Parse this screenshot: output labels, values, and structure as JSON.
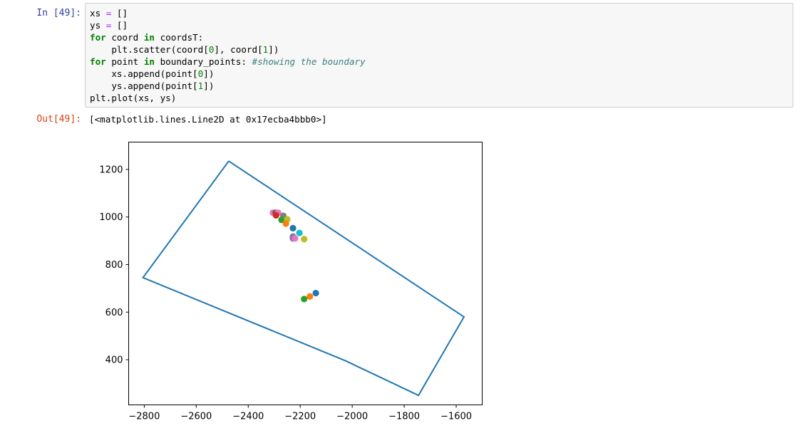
{
  "cell_in": {
    "prompt": "In [49]:",
    "code_lines": [
      [
        {
          "t": "xs ",
          "c": ""
        },
        {
          "t": "=",
          "c": "op"
        },
        {
          "t": " []",
          "c": ""
        }
      ],
      [
        {
          "t": "ys ",
          "c": ""
        },
        {
          "t": "=",
          "c": "op"
        },
        {
          "t": " []",
          "c": ""
        }
      ],
      [
        {
          "t": "for",
          "c": "kw"
        },
        {
          "t": " coord ",
          "c": ""
        },
        {
          "t": "in",
          "c": "kw"
        },
        {
          "t": " coordsT:",
          "c": ""
        }
      ],
      [
        {
          "t": "    plt.scatter(coord[",
          "c": ""
        },
        {
          "t": "0",
          "c": "num"
        },
        {
          "t": "], coord[",
          "c": ""
        },
        {
          "t": "1",
          "c": "num"
        },
        {
          "t": "])",
          "c": ""
        }
      ],
      [
        {
          "t": "for",
          "c": "kw"
        },
        {
          "t": " point ",
          "c": ""
        },
        {
          "t": "in",
          "c": "kw"
        },
        {
          "t": " boundary_points: ",
          "c": ""
        },
        {
          "t": "#showing the boundary",
          "c": "com"
        }
      ],
      [
        {
          "t": "    xs.append(point[",
          "c": ""
        },
        {
          "t": "0",
          "c": "num"
        },
        {
          "t": "])",
          "c": ""
        }
      ],
      [
        {
          "t": "    ys.append(point[",
          "c": ""
        },
        {
          "t": "1",
          "c": "num"
        },
        {
          "t": "])",
          "c": ""
        }
      ],
      [
        {
          "t": "plt.plot(xs, ys)",
          "c": ""
        }
      ]
    ]
  },
  "cell_out": {
    "prompt": "Out[49]:",
    "text": "[<matplotlib.lines.Line2D at 0x17ecba4bbb0>]"
  },
  "chart_data": {
    "type": "scatter",
    "title": "",
    "xlabel": "",
    "ylabel": "",
    "xlim": [
      -2860,
      -1500
    ],
    "ylim": [
      210,
      1315
    ],
    "xticks": [
      -2800,
      -2600,
      -2400,
      -2200,
      -2000,
      -1800,
      -1600
    ],
    "xtick_labels": [
      "−2800",
      "−2600",
      "−2400",
      "−2200",
      "−2000",
      "−1800",
      "−1600"
    ],
    "yticks": [
      400,
      600,
      800,
      1000,
      1200
    ],
    "ytick_labels": [
      "400",
      "600",
      "800",
      "1000",
      "1200"
    ],
    "grid": false,
    "line": {
      "color": "#1f77b4",
      "x": [
        -2475,
        -1570,
        -1745,
        -2025,
        -2805,
        -2475
      ],
      "y": [
        1235,
        580,
        250,
        395,
        745,
        1235
      ]
    },
    "points": [
      {
        "x": -2305,
        "y": 1018,
        "color": "#e377c2"
      },
      {
        "x": -2295,
        "y": 1018,
        "color": "#8c564b"
      },
      {
        "x": -2285,
        "y": 1018,
        "color": "#e377c2"
      },
      {
        "x": -2293,
        "y": 1007,
        "color": "#d62728"
      },
      {
        "x": -2265,
        "y": 1005,
        "color": "#7f7f7f"
      },
      {
        "x": -2272,
        "y": 988,
        "color": "#2ca02c"
      },
      {
        "x": -2250,
        "y": 990,
        "color": "#bcbd22"
      },
      {
        "x": -2255,
        "y": 972,
        "color": "#ff7f0e"
      },
      {
        "x": -2228,
        "y": 953,
        "color": "#1f77b4"
      },
      {
        "x": -2203,
        "y": 933,
        "color": "#17becf"
      },
      {
        "x": -2228,
        "y": 918,
        "color": "#7f7f7f"
      },
      {
        "x": -2228,
        "y": 910,
        "color": "#9467bd"
      },
      {
        "x": -2220,
        "y": 910,
        "color": "#e377c2"
      },
      {
        "x": -2185,
        "y": 907,
        "color": "#bcbd22"
      },
      {
        "x": -2140,
        "y": 680,
        "color": "#1f77b4"
      },
      {
        "x": -2163,
        "y": 666,
        "color": "#ff7f0e"
      },
      {
        "x": -2185,
        "y": 655,
        "color": "#2ca02c"
      }
    ]
  }
}
